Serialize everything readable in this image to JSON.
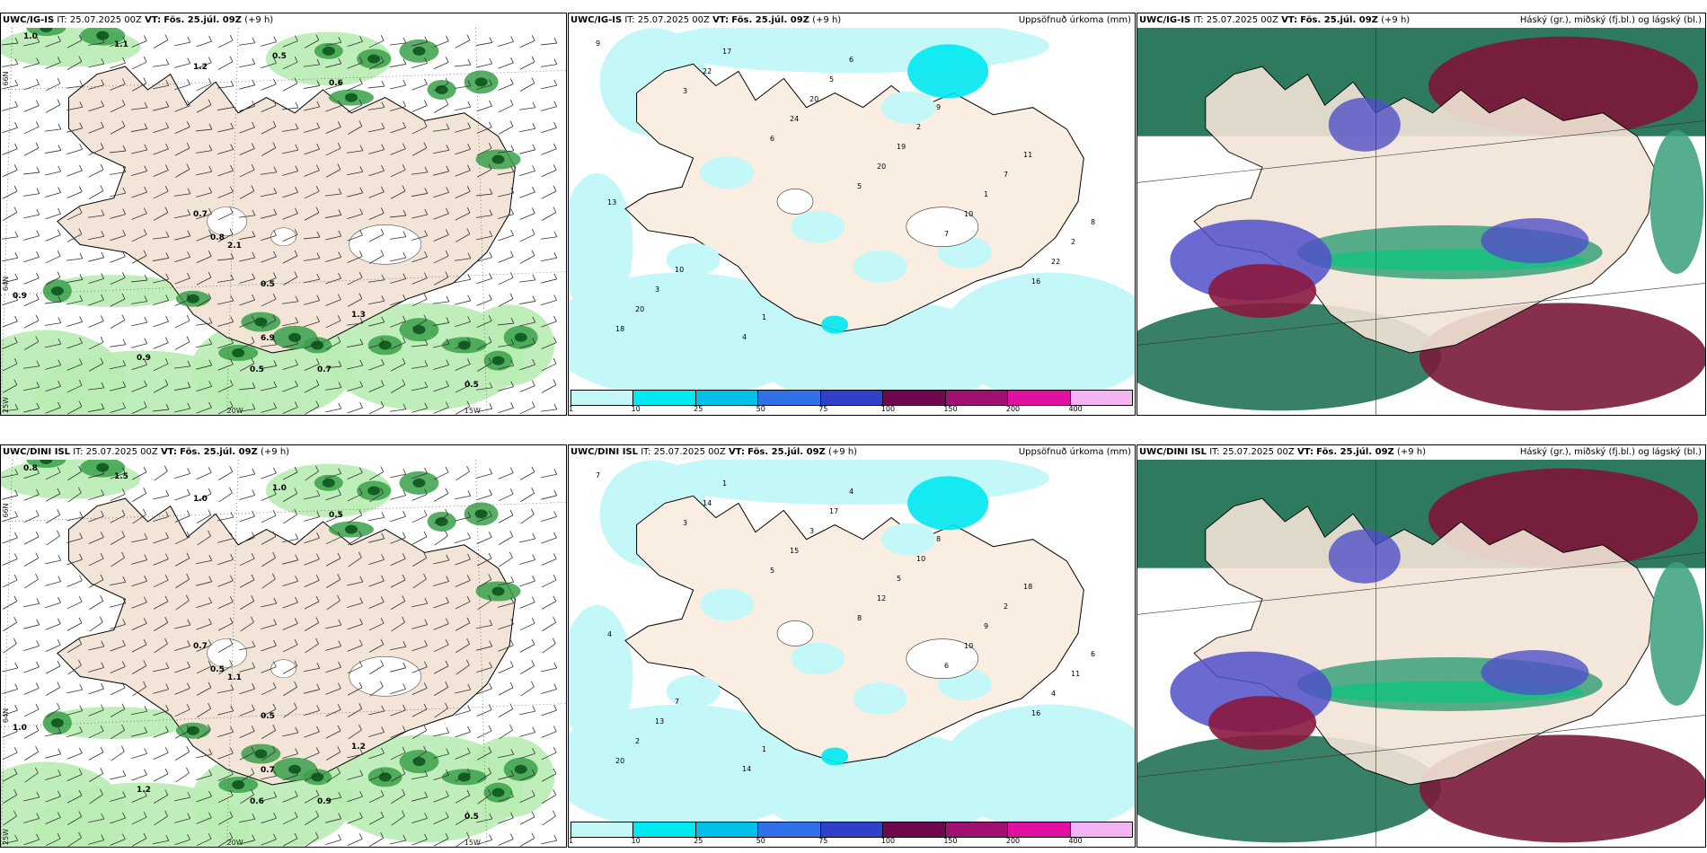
{
  "rows": [
    {
      "wind": {
        "model": "UWC/IG-IS",
        "it": "IT: 25.07.2025 00Z",
        "vt_label": "VT:",
        "vt": "Fös. 25.júl. 09Z",
        "lead": "(+9 h)",
        "lat_labels": [
          "66N",
          "64N"
        ],
        "lon_labels": [
          "25W",
          "20W",
          "15W"
        ],
        "values": [
          "0.5",
          "0.7",
          "0.8",
          "0.9",
          "1.0",
          "1.1",
          "1.2",
          "0.6",
          "1.3",
          "6.9",
          "0.5",
          "0.7",
          "0.9",
          "0.5",
          "2.1",
          "0.5"
        ]
      },
      "precip": {
        "model": "UWC/IG-IS",
        "it": "IT: 25.07.2025 00Z",
        "vt_label": "VT:",
        "vt": "Fös. 25.júl. 09Z",
        "lead": "(+9 h)",
        "title": "Uppsöfnuð úrkoma (mm)",
        "values": [
          "9",
          "3",
          "6",
          "5",
          "7",
          "16",
          "18",
          "22",
          "24",
          "20",
          "10",
          "22",
          "20",
          "17",
          "20",
          "19",
          "1",
          "2",
          "3",
          "4",
          "5",
          "2",
          "7",
          "8",
          "10",
          "1",
          "6",
          "9",
          "11",
          "13"
        ]
      },
      "cloud": {
        "model": "UWC/IG-IS",
        "it": "IT: 25.07.2025 00Z",
        "vt_label": "VT:",
        "vt": "Fös. 25.júl. 09Z",
        "lead": "(+9 h)",
        "title": "Háský (gr.), miðský (fj.bl.) og lágský (bl.)"
      }
    },
    {
      "wind": {
        "model": "UWC/DINI ISL",
        "it": "IT: 25.07.2025 00Z",
        "vt_label": "VT:",
        "vt": "Fös. 25.júl. 09Z",
        "lead": "(+9 h)",
        "lat_labels": [
          "66N",
          "64N"
        ],
        "lon_labels": [
          "25W",
          "20W",
          "15W"
        ],
        "values": [
          "1.0",
          "0.7",
          "0.5",
          "1.2",
          "0.8",
          "1.5",
          "1.0",
          "0.5",
          "1.2",
          "0.7",
          "0.6",
          "0.9",
          "1.0",
          "0.5",
          "1.1",
          "0.5"
        ]
      },
      "precip": {
        "model": "UWC/DINI ISL",
        "it": "IT: 25.07.2025 00Z",
        "vt_label": "VT:",
        "vt": "Fös. 25.júl. 09Z",
        "lead": "(+9 h)",
        "title": "Uppsöfnuð úrkoma (mm)",
        "values": [
          "7",
          "3",
          "5",
          "8",
          "6",
          "16",
          "20",
          "14",
          "15",
          "12",
          "10",
          "4",
          "2",
          "1",
          "3",
          "5",
          "9",
          "11",
          "13",
          "14",
          "17",
          "10",
          "2",
          "6",
          "7",
          "1",
          "4",
          "8",
          "18",
          "4"
        ]
      },
      "cloud": {
        "model": "UWC/DINI ISL",
        "it": "IT: 25.07.2025 00Z",
        "vt_label": "VT:",
        "vt": "Fös. 25.júl. 09Z",
        "lead": "(+9 h)",
        "title": "Háský (gr.), miðský (fj.bl.) og lágský (bl.)"
      }
    }
  ],
  "colorbar": {
    "colors": [
      "#c4f8f8",
      "#00e8f0",
      "#00c0e8",
      "#3070e8",
      "#3040c8",
      "#700850",
      "#a01070",
      "#e010a0",
      "#f4b4f4"
    ],
    "ticks": [
      "1",
      "10",
      "25",
      "50",
      "75",
      "100",
      "150",
      "200",
      "400"
    ]
  }
}
